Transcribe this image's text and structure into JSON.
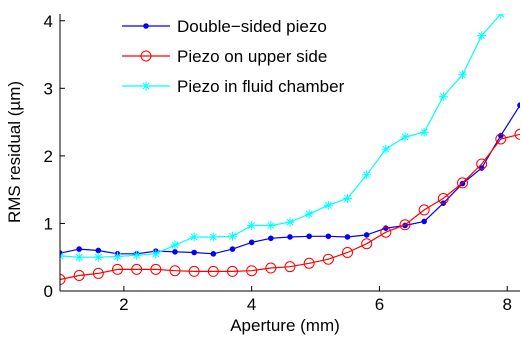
{
  "chart_data": {
    "type": "line",
    "xlabel": "Aperture (mm)",
    "ylabel": "RMS residual (µm)",
    "xlim": [
      1,
      8.2
    ],
    "ylim": [
      0,
      4.1
    ],
    "xticks": [
      2,
      4,
      6,
      8
    ],
    "yticks": [
      0,
      1,
      2,
      3,
      4
    ],
    "xtick_labels": [
      "2",
      "4",
      "6",
      "8"
    ],
    "ytick_labels": [
      "0",
      "1",
      "2",
      "3",
      "4"
    ],
    "grid": false,
    "legend_position": "top-left",
    "series": [
      {
        "name": "Double−sided piezo",
        "color": "#0000ff",
        "marker": "dot",
        "points": [
          [
            1.0,
            0.56
          ],
          [
            1.3,
            0.62
          ],
          [
            1.6,
            0.6
          ],
          [
            1.9,
            0.55
          ],
          [
            2.2,
            0.55
          ],
          [
            2.5,
            0.59
          ],
          [
            2.8,
            0.58
          ],
          [
            3.1,
            0.57
          ],
          [
            3.4,
            0.55
          ],
          [
            3.7,
            0.62
          ],
          [
            4.0,
            0.72
          ],
          [
            4.3,
            0.78
          ],
          [
            4.6,
            0.8
          ],
          [
            4.9,
            0.81
          ],
          [
            5.2,
            0.81
          ],
          [
            5.5,
            0.8
          ],
          [
            5.8,
            0.83
          ],
          [
            6.1,
            0.93
          ],
          [
            6.4,
            0.97
          ],
          [
            6.7,
            1.03
          ],
          [
            7.0,
            1.3
          ],
          [
            7.3,
            1.59
          ],
          [
            7.6,
            1.82
          ],
          [
            7.9,
            2.3
          ],
          [
            8.2,
            2.75
          ]
        ]
      },
      {
        "name": "Piezo on upper side",
        "color": "#ff0000",
        "marker": "circle",
        "points": [
          [
            1.0,
            0.17
          ],
          [
            1.3,
            0.23
          ],
          [
            1.6,
            0.26
          ],
          [
            1.9,
            0.32
          ],
          [
            2.2,
            0.32
          ],
          [
            2.5,
            0.32
          ],
          [
            2.8,
            0.3
          ],
          [
            3.1,
            0.29
          ],
          [
            3.4,
            0.29
          ],
          [
            3.7,
            0.29
          ],
          [
            4.0,
            0.3
          ],
          [
            4.3,
            0.34
          ],
          [
            4.6,
            0.36
          ],
          [
            4.9,
            0.41
          ],
          [
            5.2,
            0.47
          ],
          [
            5.5,
            0.57
          ],
          [
            5.8,
            0.7
          ],
          [
            6.1,
            0.87
          ],
          [
            6.4,
            0.98
          ],
          [
            6.7,
            1.2
          ],
          [
            7.0,
            1.37
          ],
          [
            7.3,
            1.6
          ],
          [
            7.6,
            1.88
          ],
          [
            7.9,
            2.25
          ],
          [
            8.2,
            2.32
          ]
        ]
      },
      {
        "name": "Piezo in fluid chamber",
        "color": "#00ffff",
        "marker": "star",
        "points": [
          [
            1.0,
            0.52
          ],
          [
            1.3,
            0.5
          ],
          [
            1.6,
            0.5
          ],
          [
            1.9,
            0.51
          ],
          [
            2.2,
            0.53
          ],
          [
            2.5,
            0.55
          ],
          [
            2.8,
            0.68
          ],
          [
            3.1,
            0.8
          ],
          [
            3.4,
            0.8
          ],
          [
            3.7,
            0.81
          ],
          [
            4.0,
            0.97
          ],
          [
            4.3,
            0.97
          ],
          [
            4.6,
            1.02
          ],
          [
            4.9,
            1.14
          ],
          [
            5.2,
            1.27
          ],
          [
            5.5,
            1.37
          ],
          [
            5.8,
            1.72
          ],
          [
            6.1,
            2.1
          ],
          [
            6.4,
            2.28
          ],
          [
            6.7,
            2.35
          ],
          [
            7.0,
            2.88
          ],
          [
            7.3,
            3.2
          ],
          [
            7.6,
            3.78
          ],
          [
            7.9,
            4.1
          ]
        ]
      }
    ]
  }
}
